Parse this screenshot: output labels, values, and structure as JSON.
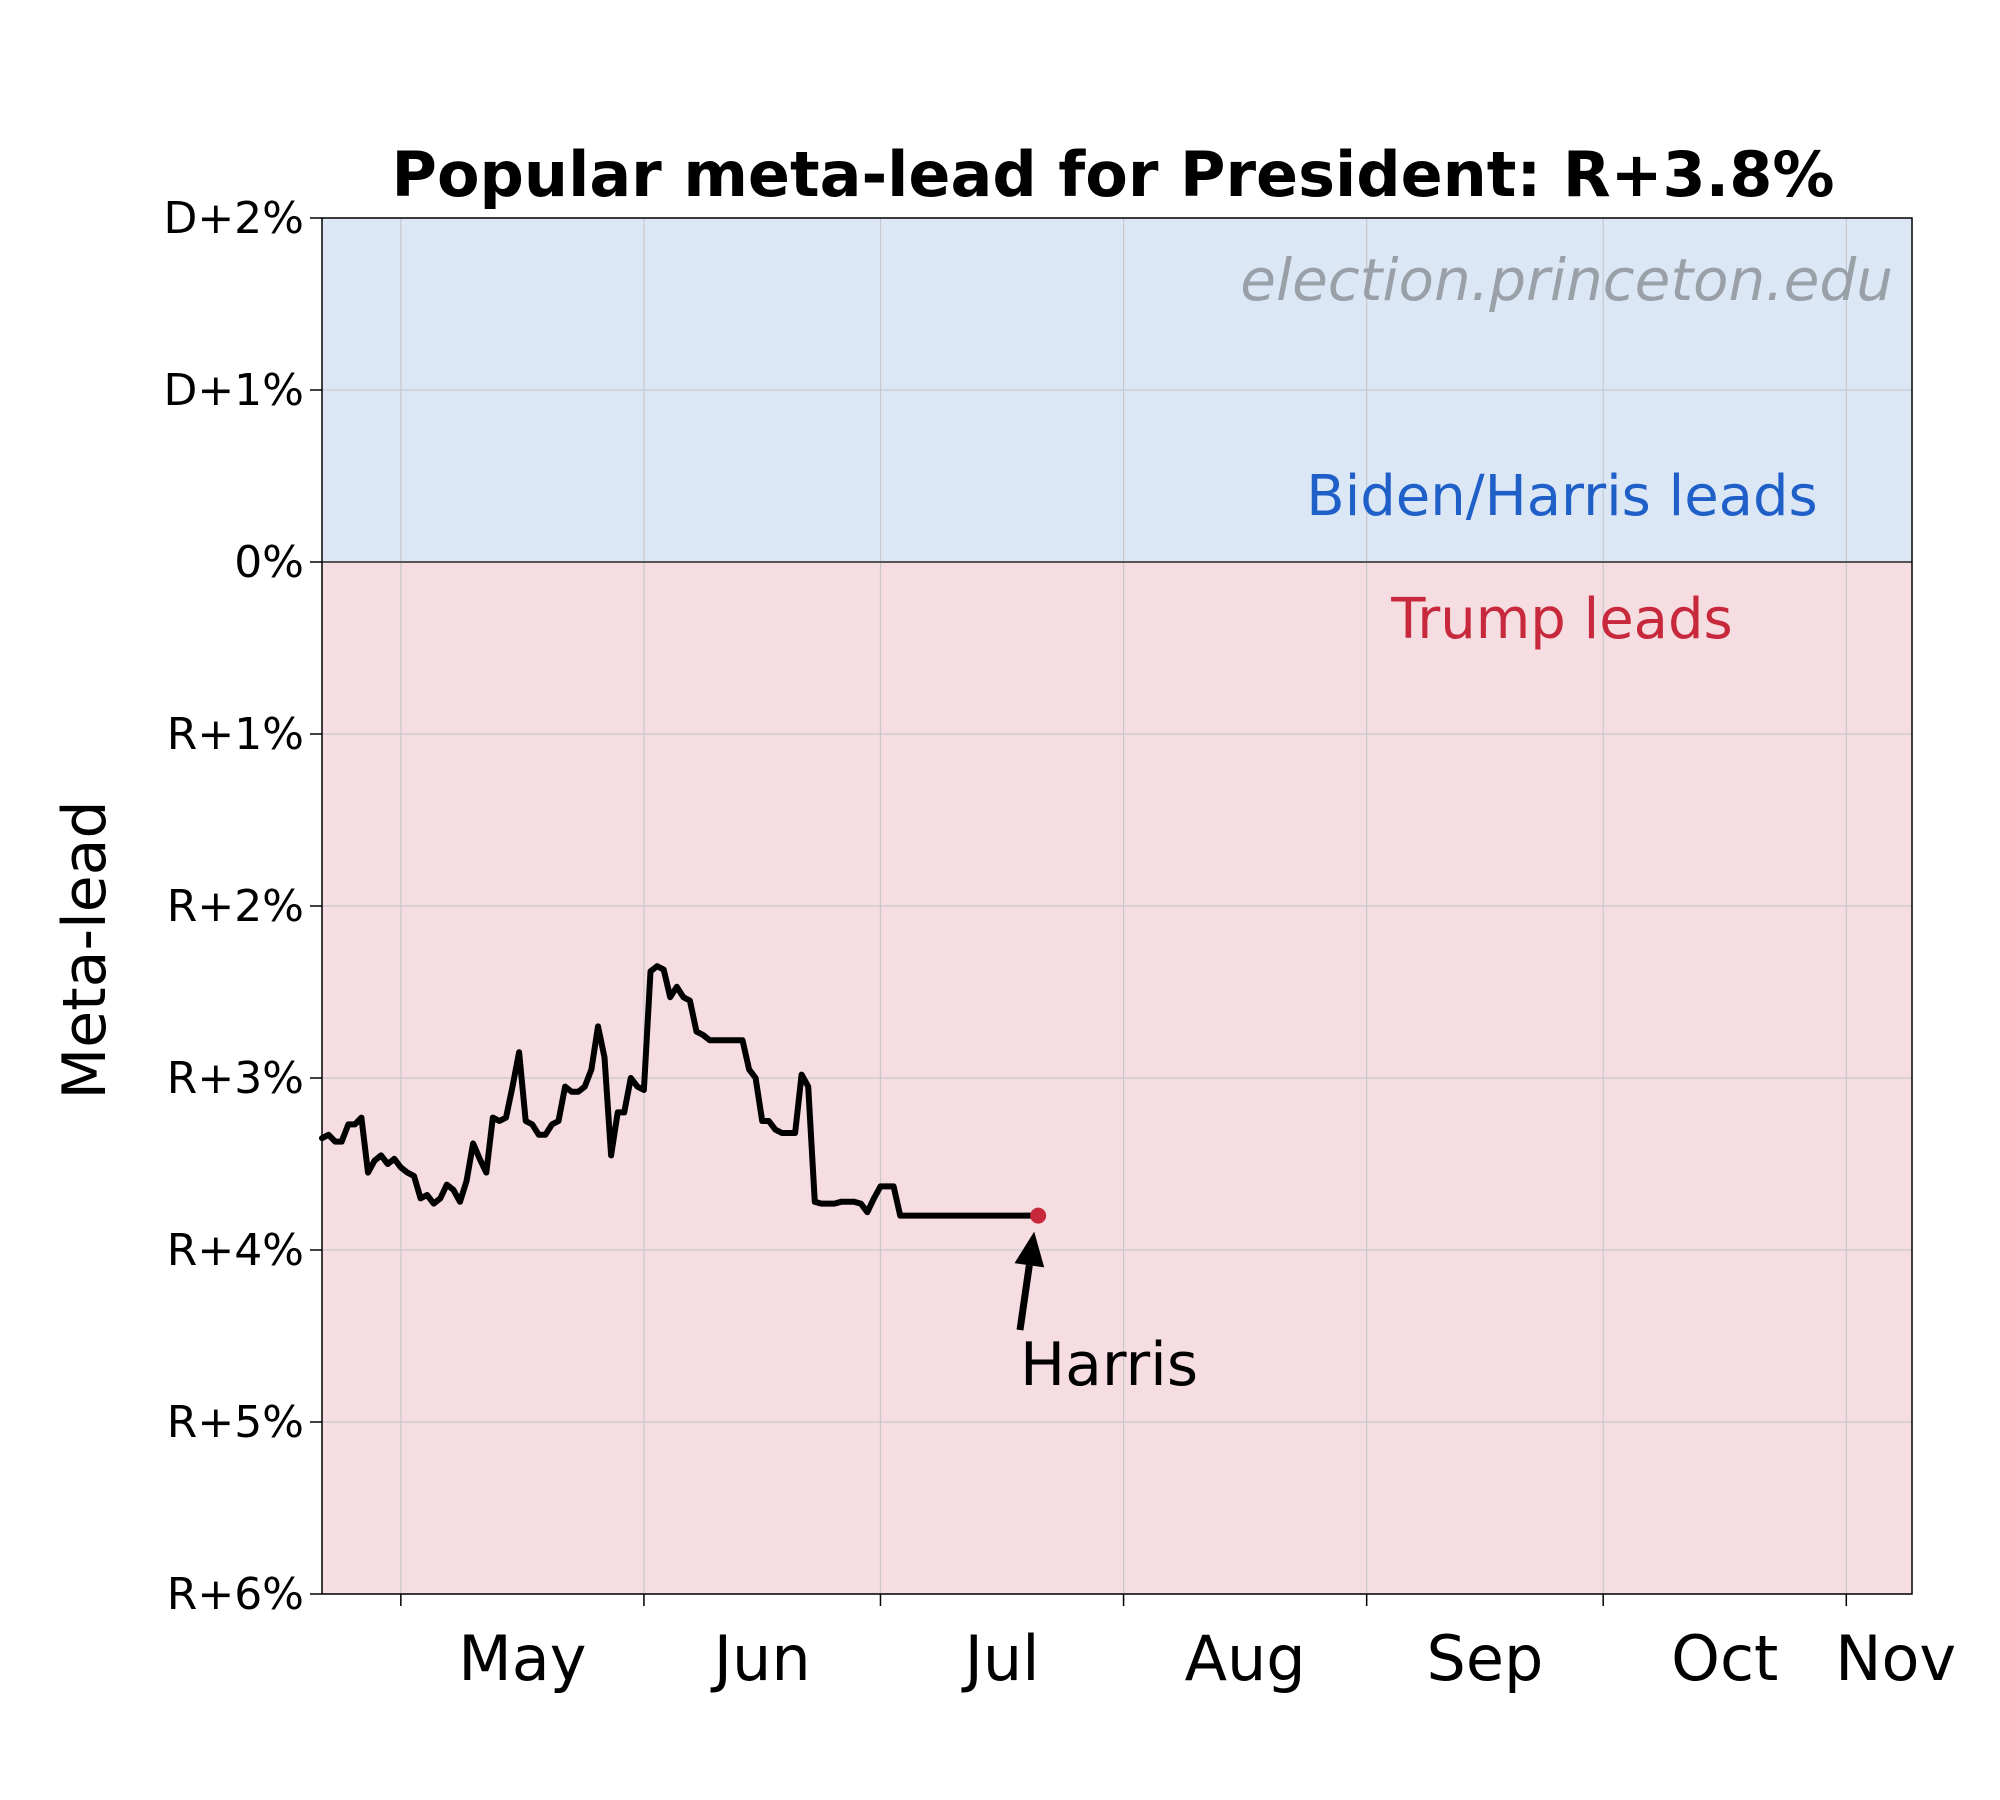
{
  "chart_data": {
    "type": "line",
    "title": "Popular meta-lead for President: R+3.8%",
    "ylabel": "Meta-lead",
    "xlabel": "",
    "watermark": "election.princeton.edu",
    "region_labels": {
      "dem": "Biden/Harris leads",
      "rep": "Trump leads"
    },
    "annotation": {
      "text": "Harris",
      "x": 109,
      "y": -3.8
    },
    "xlim": [
      0,
      242
    ],
    "ylim": [
      -6,
      2
    ],
    "x_ticks": [
      {
        "pos": 12,
        "label": "May"
      },
      {
        "pos": 49,
        "label": "Jun"
      },
      {
        "pos": 85,
        "label": "Jul"
      },
      {
        "pos": 122,
        "label": "Aug"
      },
      {
        "pos": 159,
        "label": "Sep"
      },
      {
        "pos": 195,
        "label": "Oct"
      },
      {
        "pos": 232,
        "label": "Nov"
      }
    ],
    "y_ticks": [
      {
        "value": 2,
        "label": "D+2%"
      },
      {
        "value": 1,
        "label": "D+1%"
      },
      {
        "value": 0,
        "label": "0%"
      },
      {
        "value": -1,
        "label": "R+1%"
      },
      {
        "value": -2,
        "label": "R+2%"
      },
      {
        "value": -3,
        "label": "R+3%"
      },
      {
        "value": -4,
        "label": "R+4%"
      },
      {
        "value": -5,
        "label": "R+5%"
      },
      {
        "value": -6,
        "label": "R+6%"
      }
    ],
    "grid": true,
    "colors": {
      "dem_fill": "#dce7f6",
      "rep_fill": "#f5dde1",
      "dem_text": "#1f5fc8",
      "rep_text": "#c8283c",
      "line": "#000000",
      "marker": "#c8283c",
      "watermark": "#9aa0a8",
      "grid": "#c8c8cc"
    },
    "series": [
      {
        "x": [
          0,
          1,
          2,
          3,
          4,
          5,
          6,
          7,
          8,
          9,
          10,
          11,
          12,
          13,
          14,
          15,
          16,
          17,
          18,
          19,
          20,
          21,
          22,
          23,
          24,
          25,
          26,
          27,
          28,
          29,
          30,
          31,
          32,
          33,
          34,
          35,
          36,
          37,
          38,
          39,
          40,
          41,
          42,
          43,
          44,
          45,
          46,
          47,
          48,
          49,
          50,
          51,
          52,
          53,
          54,
          55,
          56,
          57,
          58,
          59,
          60,
          61,
          62,
          63,
          64,
          65,
          66,
          67,
          68,
          69,
          70,
          71,
          72,
          73,
          74,
          75,
          76,
          77,
          78,
          79,
          80,
          81,
          82,
          83,
          84,
          85,
          86,
          87,
          88,
          89,
          90,
          91,
          92,
          93,
          94,
          95,
          96,
          97,
          98,
          99,
          100,
          101,
          102,
          103,
          104,
          105,
          106,
          107,
          108,
          109
        ],
        "y": [
          -3.35,
          -3.33,
          -3.37,
          -3.37,
          -3.27,
          -3.27,
          -3.23,
          -3.55,
          -3.48,
          -3.45,
          -3.5,
          -3.47,
          -3.52,
          -3.55,
          -3.57,
          -3.7,
          -3.68,
          -3.73,
          -3.7,
          -3.62,
          -3.65,
          -3.72,
          -3.6,
          -3.38,
          -3.47,
          -3.55,
          -3.23,
          -3.25,
          -3.23,
          -3.05,
          -2.85,
          -3.25,
          -3.27,
          -3.33,
          -3.33,
          -3.27,
          -3.25,
          -3.05,
          -3.08,
          -3.08,
          -3.05,
          -2.95,
          -2.7,
          -2.88,
          -3.45,
          -3.2,
          -3.2,
          -3.0,
          -3.05,
          -3.07,
          -2.38,
          -2.35,
          -2.37,
          -2.53,
          -2.47,
          -2.53,
          -2.55,
          -2.73,
          -2.75,
          -2.78,
          -2.78,
          -2.78,
          -2.78,
          -2.78,
          -2.78,
          -2.95,
          -3.0,
          -3.25,
          -3.25,
          -3.3,
          -3.32,
          -3.32,
          -3.32,
          -2.98,
          -3.05,
          -3.72,
          -3.73,
          -3.73,
          -3.73,
          -3.72,
          -3.72,
          -3.72,
          -3.73,
          -3.78,
          -3.7,
          -3.63,
          -3.63,
          -3.63,
          -3.8,
          -3.8,
          -3.8,
          -3.8,
          -3.8,
          -3.8,
          -3.8,
          -3.8,
          -3.8,
          -3.8,
          -3.8,
          -3.8,
          -3.8,
          -3.8,
          -3.8,
          -3.8,
          -3.8,
          -3.8,
          -3.8,
          -3.8,
          -3.8,
          -3.8
        ]
      }
    ]
  }
}
